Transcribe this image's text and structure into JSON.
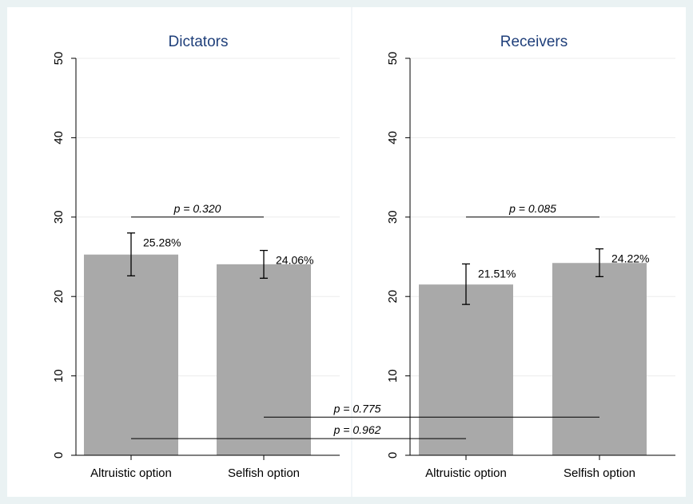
{
  "chart_data": {
    "type": "bar",
    "panels": [
      {
        "title": "Dictators",
        "categories": [
          "Altruistic option",
          "Selfish option"
        ],
        "values": [
          25.28,
          24.06
        ],
        "value_labels": [
          "25.28%",
          "24.06%"
        ],
        "error_low": [
          22.6,
          22.3
        ],
        "error_high": [
          28.0,
          25.8
        ],
        "ylim": [
          0,
          50
        ],
        "yticks": [
          0,
          10,
          20,
          30,
          40,
          50
        ],
        "ytick_labels": [
          "0",
          "10",
          "20",
          "30",
          "40",
          "50"
        ],
        "within_comparison": {
          "label": "p = 0.320",
          "y": 30
        }
      },
      {
        "title": "Receivers",
        "categories": [
          "Altruistic option",
          "Selfish option"
        ],
        "values": [
          21.51,
          24.22
        ],
        "value_labels": [
          "21.51%",
          "24.22%"
        ],
        "error_low": [
          19.0,
          22.5
        ],
        "error_high": [
          24.1,
          26.0
        ],
        "ylim": [
          0,
          50
        ],
        "yticks": [
          0,
          10,
          20,
          30,
          40,
          50
        ],
        "ytick_labels": [
          "0",
          "10",
          "20",
          "30",
          "40",
          "50"
        ],
        "within_comparison": {
          "label": "p = 0.085",
          "y": 30
        }
      }
    ],
    "cross_comparisons": [
      {
        "label": "p = 0.775",
        "from": "Dictators: Selfish option",
        "to": "Receivers: Selfish option",
        "y": 4.8
      },
      {
        "label": "p = 0.962",
        "from": "Dictators: Altruistic option",
        "to": "Receivers: Altruistic option",
        "y": 2.1
      }
    ],
    "grid": true,
    "legend": "none",
    "colors": {
      "bar": "#a9a9a9",
      "title": "#1f3f7a",
      "background": "#eaf2f3",
      "plot_bg": "#ffffff"
    }
  }
}
